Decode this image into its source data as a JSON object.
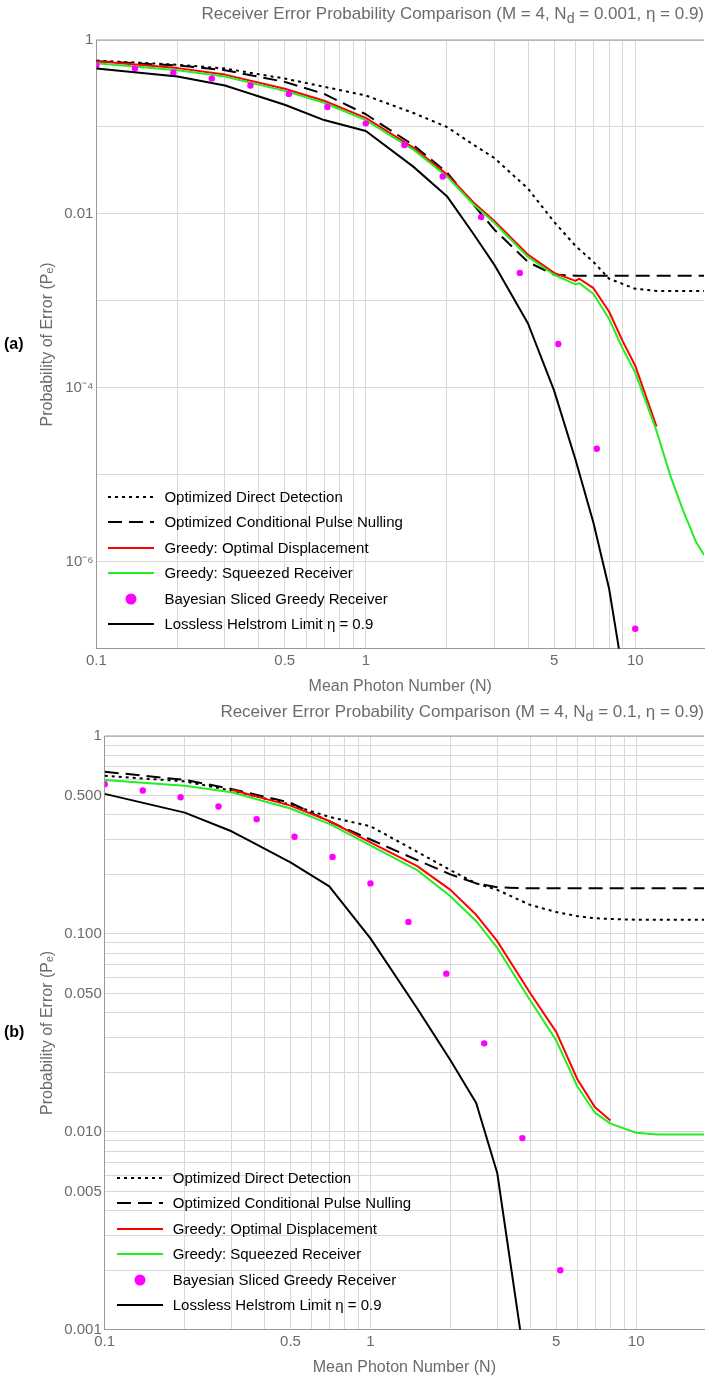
{
  "chart_data": [
    {
      "type": "line",
      "title": "Receiver Error Probability Comparison (M = 4, N$_{d}$ = 0.001, η = 0.9)",
      "xlabel": "Mean Photon Number (N)",
      "ylabel": "Probability of Error (Pₑ)",
      "annotations": [
        "(a)"
      ],
      "log": "xy",
      "grid": true,
      "legend": "bottom left",
      "xlim": [
        0.1,
        18
      ],
      "ylim": [
        1e-07,
        1
      ],
      "xticks": [
        0.1,
        {
          "value": 0.2,
          "label": null
        },
        {
          "value": 0.3,
          "label": null
        },
        {
          "value": 0.4,
          "label": null
        },
        0.5,
        {
          "value": 0.6,
          "label": null
        },
        {
          "value": 0.7,
          "label": null
        },
        {
          "value": 0.8,
          "label": null
        },
        {
          "value": 0.9,
          "label": null
        },
        1,
        {
          "value": 2,
          "label": null
        },
        {
          "value": 3,
          "label": null
        },
        {
          "value": 4,
          "label": null
        },
        5,
        {
          "value": 6,
          "label": null
        },
        {
          "value": 7,
          "label": null
        },
        {
          "value": 8,
          "label": null
        },
        {
          "value": 9,
          "label": null
        },
        10
      ],
      "yticks": [
        {
          "value": 1e-07,
          "label": null
        },
        {
          "value": 1e-06,
          "label": "10⁻⁶"
        },
        {
          "value": 1e-05,
          "label": null
        },
        {
          "value": 0.0001,
          "label": "10⁻⁴"
        },
        {
          "value": 0.001,
          "label": null
        },
        {
          "value": 0.01,
          "label": "0.01"
        },
        {
          "value": 0.1,
          "label": null
        },
        {
          "value": 1,
          "label": "1"
        }
      ],
      "series": [
        {
          "name": "Optimized Direct Detection",
          "type": "line",
          "line_style": "dotted",
          "color": "#000000",
          "x": [
            0.1,
            0.2,
            0.3,
            0.5,
            0.7,
            1,
            1.5,
            2,
            2.5,
            3,
            4,
            5,
            6,
            7,
            8,
            10,
            12,
            15,
            18
          ],
          "values": [
            0.58,
            0.52,
            0.47,
            0.36,
            0.29,
            0.23,
            0.145,
            0.1,
            0.063,
            0.044,
            0.0195,
            0.0081,
            0.0043,
            0.0028,
            0.0018,
            0.00138,
            0.0013,
            0.0013,
            0.0013
          ]
        },
        {
          "name": "Optimized Conditional Pulse Nulling",
          "type": "line",
          "line_style": "dashed",
          "color": "#000000",
          "x": [
            0.1,
            0.2,
            0.3,
            0.5,
            0.7,
            1,
            1.5,
            2,
            2.5,
            3,
            4,
            5,
            6,
            8,
            10,
            15,
            18
          ],
          "values": [
            0.57,
            0.51,
            0.45,
            0.33,
            0.24,
            0.14,
            0.062,
            0.03,
            0.013,
            0.0066,
            0.0028,
            0.002,
            0.00195,
            0.00195,
            0.00195,
            0.00195,
            0.00195
          ]
        },
        {
          "name": "Greedy: Optimal Displacement",
          "type": "line",
          "line_style": "solid",
          "color": "#ff0000",
          "x": [
            0.1,
            0.2,
            0.3,
            0.5,
            0.7,
            1,
            1.5,
            2,
            2.5,
            3,
            4,
            5,
            6,
            6.2,
            7,
            8,
            9,
            10,
            12
          ],
          "values": [
            0.57,
            0.475,
            0.4,
            0.275,
            0.2,
            0.127,
            0.058,
            0.0285,
            0.0137,
            0.0083,
            0.0034,
            0.0021,
            0.0017,
            0.0018,
            0.0014,
            0.00075,
            0.00034,
            0.00018,
            3.6e-05
          ]
        },
        {
          "name": "Greedy: Squeezed Receiver",
          "type": "line",
          "line_style": "solid",
          "color": "#22ee22",
          "x": [
            0.1,
            0.2,
            0.3,
            0.5,
            0.7,
            1,
            1.5,
            2,
            2.5,
            3,
            4,
            5,
            6,
            6.2,
            7,
            8,
            9,
            10,
            12,
            13.5,
            15,
            16.8,
            18
          ],
          "values": [
            0.54,
            0.45,
            0.38,
            0.26,
            0.19,
            0.12,
            0.055,
            0.027,
            0.013,
            0.0079,
            0.0032,
            0.002,
            0.00155,
            0.0016,
            0.0012,
            0.00062,
            0.00028,
            0.00015,
            3.2e-05,
            9.8e-06,
            4e-06,
            1.7e-06,
            1.2e-06
          ]
        },
        {
          "name": "Bayesian Sliced Greedy Receiver",
          "type": "scatter",
          "marker": "circle",
          "color": "#ff00ff",
          "x": [
            0.1,
            0.139,
            0.193,
            0.268,
            0.373,
            0.518,
            0.72,
            1,
            1.39,
            1.93,
            2.68,
            3.73,
            5.18,
            7.2,
            10
          ],
          "values": [
            0.51,
            0.47,
            0.42,
            0.36,
            0.3,
            0.24,
            0.17,
            0.11,
            0.062,
            0.027,
            0.0092,
            0.0021,
            0.00032,
            2e-05,
            1.7e-07
          ]
        },
        {
          "name": "Lossless Helstrom Limit η = 0.9",
          "type": "line",
          "line_style": "solid",
          "color": "#000000",
          "x": [
            0.1,
            0.2,
            0.3,
            0.5,
            0.7,
            1,
            1.5,
            2,
            2.5,
            3,
            4,
            5,
            6,
            7,
            8,
            8.7
          ],
          "values": [
            0.47,
            0.38,
            0.3,
            0.18,
            0.12,
            0.09,
            0.035,
            0.016,
            0.006,
            0.0026,
            0.00055,
            9.3e-05,
            1.5e-05,
            2.8e-06,
            4.9e-07,
            1e-07
          ]
        }
      ]
    },
    {
      "type": "line",
      "title": "Receiver Error Probability Comparison (M = 4, N$_{d}$ = 0.1, η = 0.9)",
      "xlabel": "Mean Photon Number (N)",
      "ylabel": "Probability of Error (Pₑ)",
      "annotations": [
        "(b)"
      ],
      "log": "xy",
      "grid": true,
      "legend": "bottom left",
      "xlim": [
        0.1,
        18
      ],
      "ylim": [
        0.001,
        1
      ],
      "xticks": [
        0.1,
        {
          "value": 0.2,
          "label": null
        },
        {
          "value": 0.3,
          "label": null
        },
        {
          "value": 0.4,
          "label": null
        },
        0.5,
        {
          "value": 0.6,
          "label": null
        },
        {
          "value": 0.7,
          "label": null
        },
        {
          "value": 0.8,
          "label": null
        },
        {
          "value": 0.9,
          "label": null
        },
        1,
        {
          "value": 2,
          "label": null
        },
        {
          "value": 3,
          "label": null
        },
        {
          "value": 4,
          "label": null
        },
        5,
        {
          "value": 6,
          "label": null
        },
        {
          "value": 7,
          "label": null
        },
        {
          "value": 8,
          "label": null
        },
        {
          "value": 9,
          "label": null
        },
        10
      ],
      "yticks": [
        {
          "value": 0.001,
          "label": "0.001"
        },
        {
          "value": 0.002,
          "label": null
        },
        {
          "value": 0.003,
          "label": null
        },
        {
          "value": 0.004,
          "label": null
        },
        {
          "value": 0.005,
          "label": "0.005"
        },
        {
          "value": 0.006,
          "label": null
        },
        {
          "value": 0.007,
          "label": null
        },
        {
          "value": 0.008,
          "label": null
        },
        {
          "value": 0.009,
          "label": null
        },
        {
          "value": 0.01,
          "label": "0.010"
        },
        {
          "value": 0.02,
          "label": null
        },
        {
          "value": 0.03,
          "label": null
        },
        {
          "value": 0.04,
          "label": null
        },
        {
          "value": 0.05,
          "label": "0.050"
        },
        {
          "value": 0.06,
          "label": null
        },
        {
          "value": 0.07,
          "label": null
        },
        {
          "value": 0.08,
          "label": null
        },
        {
          "value": 0.09,
          "label": null
        },
        {
          "value": 0.1,
          "label": "0.100"
        },
        {
          "value": 0.2,
          "label": null
        },
        {
          "value": 0.3,
          "label": null
        },
        {
          "value": 0.4,
          "label": null
        },
        {
          "value": 0.5,
          "label": "0.500"
        },
        {
          "value": 0.6,
          "label": null
        },
        {
          "value": 0.7,
          "label": null
        },
        {
          "value": 0.8,
          "label": null
        },
        {
          "value": 0.9,
          "label": null
        },
        {
          "value": 1,
          "label": "1"
        }
      ],
      "series": [
        {
          "name": "Optimized Direct Detection",
          "type": "line",
          "line_style": "dotted",
          "color": "#000000",
          "x": [
            0.1,
            0.2,
            0.3,
            0.5,
            0.7,
            1,
            1.5,
            2,
            2.5,
            3,
            4,
            5,
            6,
            7,
            8,
            10,
            12,
            15,
            18
          ],
          "values": [
            0.63,
            0.59,
            0.53,
            0.45,
            0.39,
            0.35,
            0.26,
            0.21,
            0.18,
            0.167,
            0.14,
            0.129,
            0.123,
            0.12,
            0.119,
            0.118,
            0.118,
            0.118,
            0.118
          ]
        },
        {
          "name": "Optimized Conditional Pulse Nulling",
          "type": "line",
          "line_style": "dashed",
          "color": "#000000",
          "x": [
            0.1,
            0.2,
            0.3,
            0.5,
            0.7,
            1,
            1.5,
            2,
            2.5,
            3,
            4,
            6,
            10,
            18
          ],
          "values": [
            0.66,
            0.6,
            0.54,
            0.46,
            0.37,
            0.3,
            0.236,
            0.2,
            0.18,
            0.172,
            0.17,
            0.17,
            0.17,
            0.17
          ]
        },
        {
          "name": "Greedy: Optimal Displacement",
          "type": "line",
          "line_style": "solid",
          "color": "#ff0000",
          "x": [
            0.3,
            0.5,
            0.7,
            1,
            1.5,
            2,
            2.5,
            3,
            4,
            5,
            6,
            7,
            8
          ],
          "values": [
            0.535,
            0.445,
            0.372,
            0.29,
            0.22,
            0.167,
            0.125,
            0.092,
            0.05,
            0.032,
            0.0185,
            0.0133,
            0.0114
          ]
        },
        {
          "name": "Greedy: Squeezed Receiver",
          "type": "line",
          "line_style": "solid",
          "color": "#22ee22",
          "x": [
            0.1,
            0.2,
            0.3,
            0.5,
            0.7,
            1,
            1.5,
            2,
            2.5,
            3,
            4,
            5,
            6,
            7,
            8,
            10,
            12,
            15,
            18
          ],
          "values": [
            0.6,
            0.56,
            0.52,
            0.43,
            0.36,
            0.28,
            0.21,
            0.155,
            0.116,
            0.085,
            0.046,
            0.029,
            0.017,
            0.0125,
            0.011,
            0.0099,
            0.0097,
            0.0097,
            0.0097
          ]
        },
        {
          "name": "Bayesian Sliced Greedy Receiver",
          "type": "scatter",
          "marker": "circle",
          "color": "#ff00ff",
          "x": [
            0.1,
            0.139,
            0.193,
            0.268,
            0.373,
            0.518,
            0.72,
            1,
            1.39,
            1.93,
            2.68,
            3.73,
            5.18
          ],
          "values": [
            0.57,
            0.53,
            0.49,
            0.44,
            0.38,
            0.31,
            0.245,
            0.18,
            0.115,
            0.063,
            0.028,
            0.0093,
            0.002
          ]
        },
        {
          "name": "Lossless Helstrom Limit η = 0.9",
          "type": "line",
          "line_style": "solid",
          "color": "#000000",
          "x": [
            0.1,
            0.2,
            0.3,
            0.5,
            0.7,
            1,
            1.5,
            2,
            2.5,
            3,
            3.66
          ],
          "values": [
            0.51,
            0.41,
            0.33,
            0.23,
            0.174,
            0.095,
            0.042,
            0.023,
            0.014,
            0.0062,
            0.001
          ]
        }
      ]
    }
  ]
}
